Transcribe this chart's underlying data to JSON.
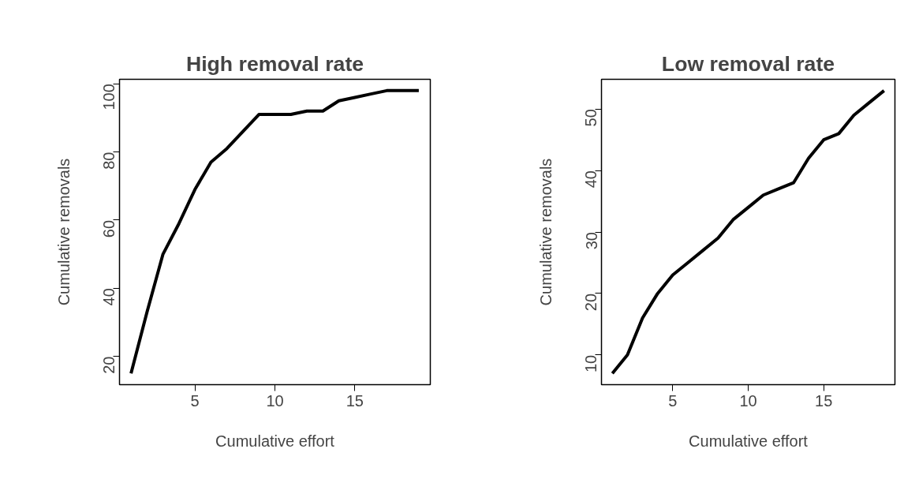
{
  "chart_data": [
    {
      "type": "line",
      "title": "High removal rate",
      "xlabel": "Cumulative effort",
      "ylabel": "Cumulative removals",
      "x": [
        1,
        2,
        3,
        4,
        5,
        6,
        7,
        8,
        9,
        10,
        11,
        12,
        13,
        14,
        15,
        16,
        17,
        18,
        19
      ],
      "series": [
        {
          "color": "#000000",
          "values": [
            15,
            33,
            50,
            59,
            69,
            77,
            81,
            86,
            91,
            91,
            91,
            92,
            92,
            95,
            96,
            97,
            98,
            98,
            98
          ]
        }
      ],
      "xlim": [
        0.28,
        19.72
      ],
      "ylim": [
        11.68,
        101.32
      ],
      "xticks": [
        5,
        10,
        15
      ],
      "yticks": [
        20,
        40,
        60,
        80,
        100
      ]
    },
    {
      "type": "line",
      "title": "Low removal rate",
      "xlabel": "Cumulative effort",
      "ylabel": "Cumulative removals",
      "x": [
        1,
        2,
        3,
        4,
        5,
        6,
        7,
        8,
        9,
        10,
        11,
        12,
        13,
        14,
        15,
        16,
        17,
        18,
        19
      ],
      "series": [
        {
          "color": "#000000",
          "values": [
            7,
            10,
            16,
            20,
            23,
            25,
            27,
            29,
            32,
            34,
            36,
            37,
            38,
            42,
            45,
            46,
            49,
            51,
            53
          ]
        }
      ],
      "xlim": [
        0.28,
        19.72
      ],
      "ylim": [
        5.16,
        54.84
      ],
      "xticks": [
        5,
        10,
        15
      ],
      "yticks": [
        10,
        20,
        30,
        40,
        50
      ]
    }
  ]
}
